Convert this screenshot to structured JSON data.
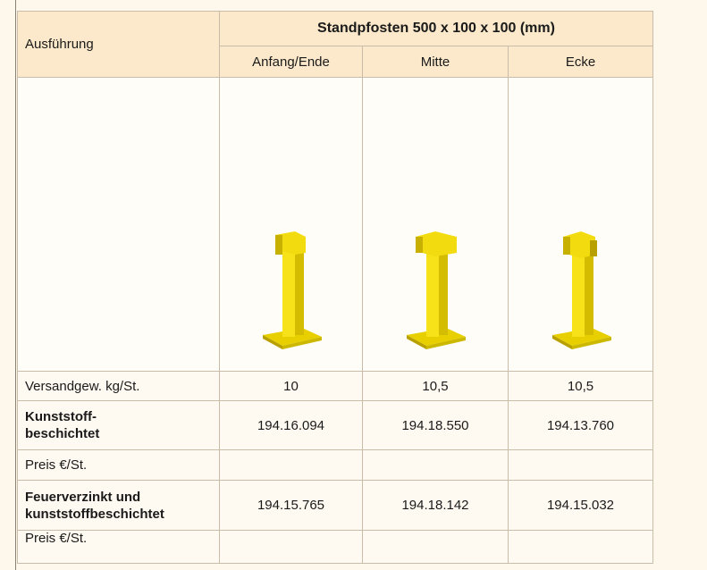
{
  "table": {
    "header": {
      "row_label": "Ausführung",
      "group": "Standpfosten 500 x 100 x 100 (mm)",
      "columns": [
        "Anfang/Ende",
        "Mitte",
        "Ecke"
      ]
    },
    "rows": [
      [
        "Versandgew. kg/St.",
        "10",
        "10,5",
        "10,5"
      ],
      [
        "Kunststoff-\nbeschichtet",
        "194.16.094",
        "194.18.550",
        "194.13.760"
      ],
      [
        "Preis €/St."
      ],
      [
        "Feuerverzinkt und\nkunststoffbeschichtet",
        "194.15.765",
        "194.18.142",
        "194.15.032"
      ],
      [
        "Preis €/St."
      ]
    ]
  }
}
